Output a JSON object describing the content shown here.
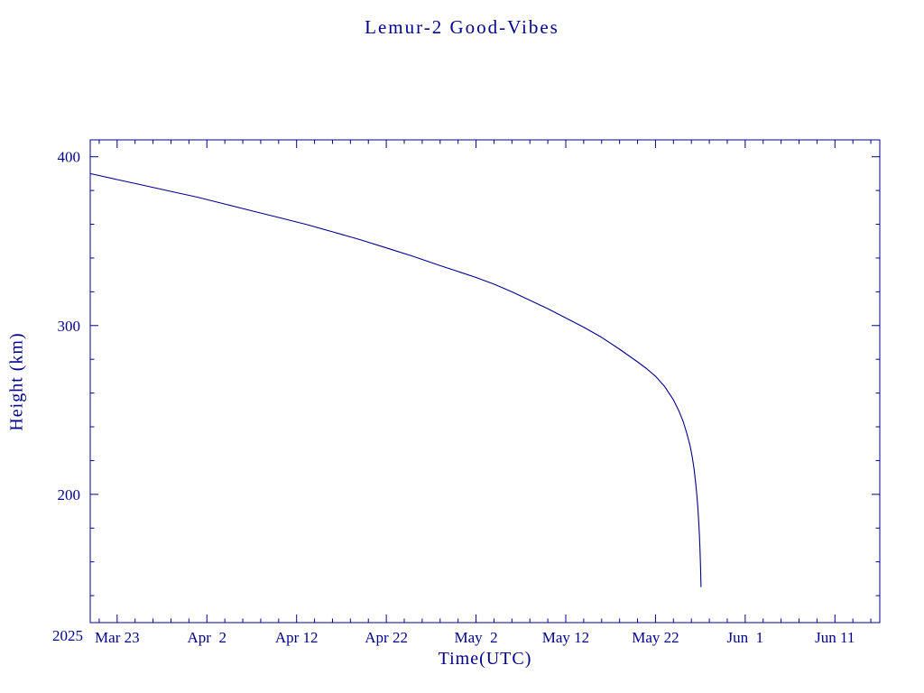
{
  "page": {
    "background": "#ffffff",
    "accent_color": "#00008B"
  },
  "chart_data": {
    "type": "line",
    "title": "Lemur-2 Good-Vibes",
    "xlabel": "Time(UTC)",
    "ylabel": "Height (km)",
    "year_label": "2025",
    "x_epoch": "2025 Mar 20",
    "x_unit": "days",
    "xlim": [
      0,
      88
    ],
    "ylim": [
      124,
      410
    ],
    "grid": false,
    "legend": "none",
    "axis_color": "#00008B",
    "y_ticks": [
      200,
      300,
      400
    ],
    "y_minor_step": 20,
    "x_minor_step": 2,
    "x_ticks": [
      {
        "day": 3,
        "label": "Mar 23"
      },
      {
        "day": 13,
        "label": "Apr  2"
      },
      {
        "day": 23,
        "label": "Apr 12"
      },
      {
        "day": 33,
        "label": "Apr 22"
      },
      {
        "day": 43,
        "label": "May  2"
      },
      {
        "day": 53,
        "label": "May 12"
      },
      {
        "day": 63,
        "label": "May 22"
      },
      {
        "day": 73,
        "label": "Jun  1"
      },
      {
        "day": 83,
        "label": "Jun 11"
      }
    ],
    "series": [
      {
        "name": "Height (km)",
        "color": "#00008B",
        "points": [
          [
            0,
            390
          ],
          [
            3,
            386.5
          ],
          [
            6,
            383
          ],
          [
            9,
            379.5
          ],
          [
            12,
            376
          ],
          [
            15,
            372
          ],
          [
            18,
            368
          ],
          [
            21,
            364
          ],
          [
            24,
            360
          ],
          [
            27,
            355.5
          ],
          [
            30,
            351
          ],
          [
            33,
            346
          ],
          [
            36,
            341
          ],
          [
            39,
            335.5
          ],
          [
            41,
            332
          ],
          [
            43,
            328.5
          ],
          [
            45,
            324.5
          ],
          [
            47,
            320
          ],
          [
            49,
            315
          ],
          [
            51,
            310
          ],
          [
            53,
            304.5
          ],
          [
            55,
            299
          ],
          [
            57,
            293
          ],
          [
            59,
            286
          ],
          [
            61,
            278.5
          ],
          [
            62,
            274.5
          ],
          [
            63,
            270
          ],
          [
            64,
            264
          ],
          [
            65,
            256
          ],
          [
            65.6,
            249.5
          ],
          [
            66.1,
            243
          ],
          [
            66.5,
            236
          ],
          [
            66.85,
            229
          ],
          [
            67.1,
            222
          ],
          [
            67.3,
            215
          ],
          [
            67.45,
            208
          ],
          [
            67.6,
            200
          ],
          [
            67.72,
            192
          ],
          [
            67.82,
            184
          ],
          [
            67.9,
            176
          ],
          [
            67.96,
            168
          ],
          [
            68.01,
            160
          ],
          [
            68.05,
            152
          ],
          [
            68.08,
            145
          ]
        ]
      }
    ]
  }
}
